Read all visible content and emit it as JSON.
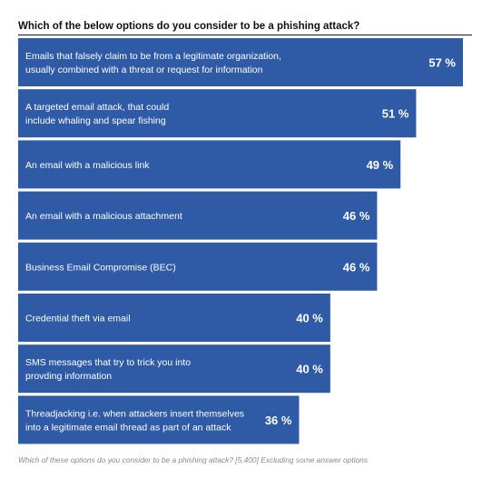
{
  "title": "Which of the below options do you consider to be a phishing attack?",
  "footnote": "Which of these options do you consider to be a phishing attack? [5,400] Excluding some answer options",
  "colors": {
    "bar": "#2e5aa6",
    "bar_text": "#ffffff"
  },
  "chart_data": {
    "type": "bar",
    "orientation": "horizontal",
    "categories": [
      [
        "Emails that falsely claim to be from a legitimate organization,",
        "usually combined with a threat or request for information"
      ],
      [
        "A targeted email attack, that could",
        "include whaling and spear fishing"
      ],
      [
        "An email with a malicious link"
      ],
      [
        "An email with a malicious attachment"
      ],
      [
        "Business Email Compromise (BEC)"
      ],
      [
        "Credential theft via email"
      ],
      [
        "SMS messages that try to trick you into",
        "provding information"
      ],
      [
        "Threadjacking i.e. when attackers insert themselves",
        "into a legitimate email thread as part of an attack"
      ]
    ],
    "values": [
      57,
      51,
      49,
      46,
      46,
      40,
      40,
      36
    ],
    "value_labels": [
      "57 %",
      "51 %",
      "49 %",
      "46 %",
      "46 %",
      "40 %",
      "40 %",
      "36 %"
    ],
    "unit": "%",
    "xlim": [
      0,
      57
    ],
    "grid": false,
    "legend": "none"
  }
}
